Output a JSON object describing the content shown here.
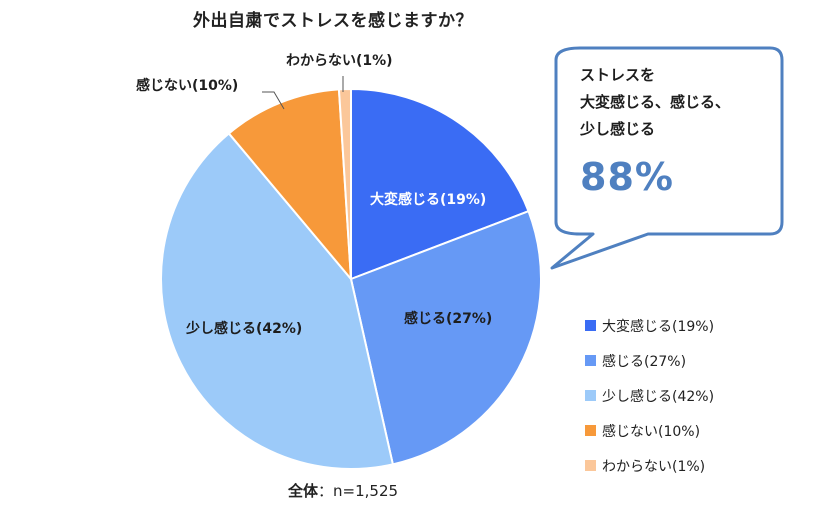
{
  "title": "外出自粛でストレスを感じますか？",
  "chart_data": {
    "type": "pie",
    "title": "外出自粛でストレスを感じますか？",
    "categories": [
      "大変感じる",
      "感じる",
      "少し感じる",
      "感じない",
      "わからない"
    ],
    "values": [
      19,
      27,
      42,
      10,
      1
    ],
    "unit": "%",
    "labels": [
      "大変感じる(19%)",
      "感じる(27%)",
      "少し感じる(42%)",
      "感じない(10%)",
      "わからない(1%)"
    ],
    "colors": [
      "#3a6cf4",
      "#6699f5",
      "#9ccaf9",
      "#f7993a",
      "#fbc79a"
    ],
    "start_angle": "12 o'clock",
    "direction": "clockwise",
    "legend_position": "right",
    "sample_note": "全体：n=1,525",
    "callout": {
      "text_lines": [
        "ストレスを",
        "大変感じる、感じる、",
        "少し感じる"
      ],
      "value": "88%"
    }
  },
  "slice_labels": {
    "s0": "大変感じる(19%)",
    "s1": "感じる(27%)",
    "s2": "少し感じる(42%)",
    "s3": "感じない(10%)",
    "s4": "わからない(1%)"
  },
  "callout": {
    "line1": "ストレスを",
    "line2": "大変感じる、感じる、",
    "line3": "少し感じる",
    "value": "88%"
  },
  "legend": [
    {
      "label": "大変感じる(19%)",
      "color": "#3a6cf4"
    },
    {
      "label": "感じる(27%)",
      "color": "#6699f5"
    },
    {
      "label": "少し感じる(42%)",
      "color": "#9ccaf9"
    },
    {
      "label": "感じない(10%)",
      "color": "#f7993a"
    },
    {
      "label": "わからない(1%)",
      "color": "#fbc79a"
    }
  ],
  "footer": {
    "label": "全体",
    "sample": "：n=1,525"
  }
}
